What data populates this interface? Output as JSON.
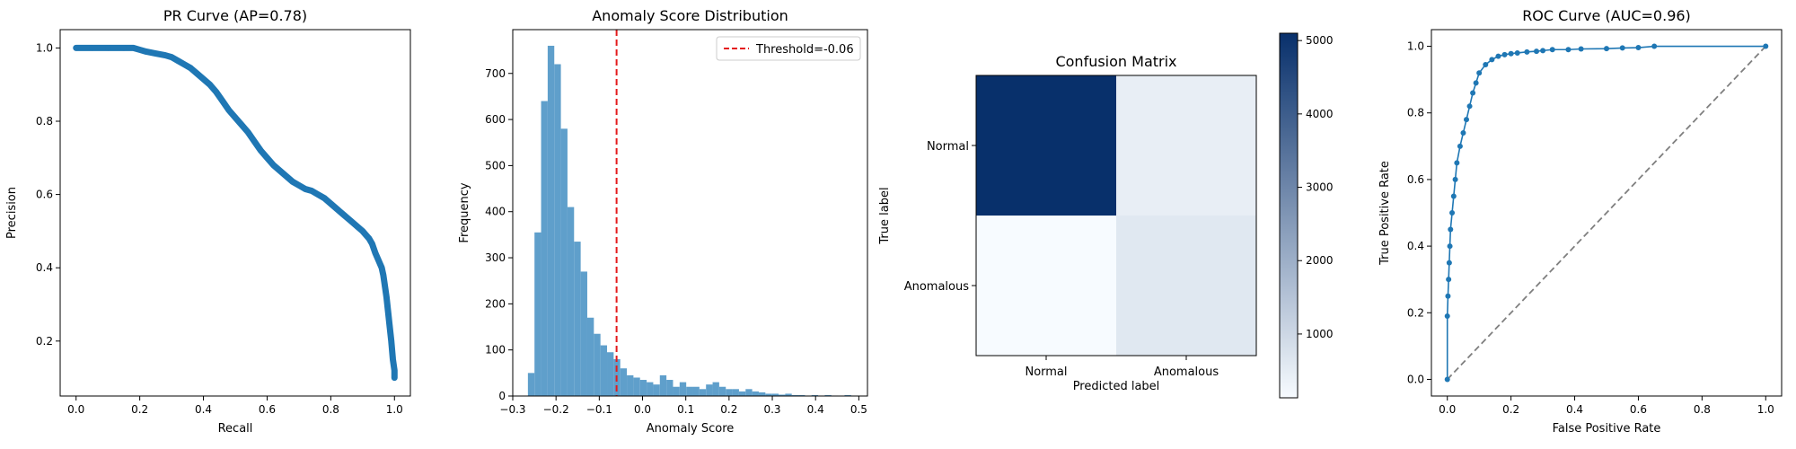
{
  "colors": {
    "primary": "#1f77b4",
    "hist": "#5f9fcb",
    "threshold": "#e41a1c",
    "diagonal": "#7f7f7f"
  },
  "chart_data": [
    {
      "type": "line",
      "title": "PR Curve (AP=0.78)",
      "xlabel": "Recall",
      "ylabel": "Precision",
      "xlim": [
        -0.05,
        1.05
      ],
      "ylim": [
        0.05,
        1.05
      ],
      "xticks": [
        "0.0",
        "0.2",
        "0.4",
        "0.6",
        "0.8",
        "1.0"
      ],
      "yticks": [
        "0.2",
        "0.4",
        "0.6",
        "0.8",
        "1.0"
      ],
      "markers": "dense",
      "x": [
        0.0,
        0.05,
        0.1,
        0.15,
        0.18,
        0.2,
        0.22,
        0.25,
        0.28,
        0.3,
        0.32,
        0.34,
        0.36,
        0.38,
        0.4,
        0.42,
        0.44,
        0.46,
        0.48,
        0.5,
        0.52,
        0.54,
        0.56,
        0.58,
        0.6,
        0.62,
        0.64,
        0.66,
        0.68,
        0.7,
        0.72,
        0.74,
        0.76,
        0.78,
        0.8,
        0.82,
        0.84,
        0.86,
        0.88,
        0.9,
        0.92,
        0.93,
        0.94,
        0.95,
        0.96,
        0.965,
        0.97,
        0.975,
        0.98,
        0.985,
        0.99,
        0.995,
        1.0,
        1.0
      ],
      "y": [
        1.0,
        1.0,
        1.0,
        1.0,
        1.0,
        0.995,
        0.99,
        0.985,
        0.98,
        0.975,
        0.965,
        0.955,
        0.945,
        0.93,
        0.915,
        0.9,
        0.88,
        0.855,
        0.83,
        0.81,
        0.79,
        0.77,
        0.745,
        0.72,
        0.7,
        0.68,
        0.665,
        0.65,
        0.635,
        0.625,
        0.615,
        0.61,
        0.6,
        0.59,
        0.575,
        0.56,
        0.545,
        0.53,
        0.515,
        0.5,
        0.48,
        0.465,
        0.44,
        0.42,
        0.4,
        0.38,
        0.35,
        0.32,
        0.28,
        0.24,
        0.2,
        0.15,
        0.12,
        0.1
      ]
    },
    {
      "type": "histogram",
      "title": "Anomaly Score Distribution",
      "xlabel": "Anomaly Score",
      "ylabel": "Frequency",
      "xlim": [
        -0.3,
        0.52
      ],
      "ylim": [
        0,
        795
      ],
      "xticks": [
        "−0.3",
        "−0.2",
        "−0.1",
        "0.0",
        "0.1",
        "0.2",
        "0.3",
        "0.4",
        "0.5"
      ],
      "yticks": [
        "0",
        "100",
        "200",
        "300",
        "400",
        "500",
        "600",
        "700"
      ],
      "bin_start": -0.265,
      "bin_width": 0.01525,
      "counts": [
        50,
        355,
        640,
        760,
        720,
        580,
        410,
        335,
        270,
        170,
        135,
        110,
        95,
        80,
        60,
        45,
        40,
        35,
        30,
        25,
        45,
        35,
        20,
        30,
        20,
        20,
        15,
        25,
        30,
        20,
        15,
        15,
        10,
        15,
        10,
        8,
        5,
        5,
        3,
        5,
        2,
        2,
        1,
        2,
        1,
        2,
        1,
        0,
        2,
        1
      ],
      "threshold": {
        "value": -0.06,
        "label": "Threshold=-0.06"
      },
      "legend": "top-right"
    },
    {
      "type": "heatmap",
      "title": "Confusion Matrix",
      "xlabel": "Predicted label",
      "ylabel": "True label",
      "row_labels": [
        "Normal",
        "Anomalous"
      ],
      "col_labels": [
        "Normal",
        "Anomalous"
      ],
      "values": [
        [
          5100,
          450
        ],
        [
          130,
          600
        ]
      ],
      "colorbar": {
        "min": 130,
        "max": 5100,
        "ticks": [
          "1000",
          "2000",
          "3000",
          "4000",
          "5000"
        ]
      }
    },
    {
      "type": "line",
      "title": "ROC Curve (AUC=0.96)",
      "xlabel": "False Positive Rate",
      "ylabel": "True Positive Rate",
      "xlim": [
        -0.05,
        1.05
      ],
      "ylim": [
        -0.05,
        1.05
      ],
      "xticks": [
        "0.0",
        "0.2",
        "0.4",
        "0.6",
        "0.8",
        "1.0"
      ],
      "yticks": [
        "0.0",
        "0.2",
        "0.4",
        "0.6",
        "0.8",
        "1.0"
      ],
      "x": [
        0.0,
        0.0,
        0.002,
        0.004,
        0.006,
        0.008,
        0.01,
        0.015,
        0.02,
        0.025,
        0.03,
        0.04,
        0.05,
        0.06,
        0.07,
        0.08,
        0.09,
        0.1,
        0.12,
        0.14,
        0.16,
        0.18,
        0.2,
        0.22,
        0.25,
        0.28,
        0.3,
        0.33,
        0.38,
        0.42,
        0.5,
        0.55,
        0.6,
        0.65,
        1.0
      ],
      "y": [
        0.0,
        0.19,
        0.25,
        0.3,
        0.35,
        0.4,
        0.45,
        0.5,
        0.55,
        0.6,
        0.65,
        0.7,
        0.74,
        0.78,
        0.82,
        0.86,
        0.89,
        0.92,
        0.945,
        0.96,
        0.97,
        0.975,
        0.978,
        0.98,
        0.983,
        0.985,
        0.987,
        0.99,
        0.99,
        0.992,
        0.993,
        0.995,
        0.996,
        1.0,
        1.0
      ],
      "baseline": {
        "x": [
          0,
          1
        ],
        "y": [
          0,
          1
        ]
      }
    }
  ]
}
